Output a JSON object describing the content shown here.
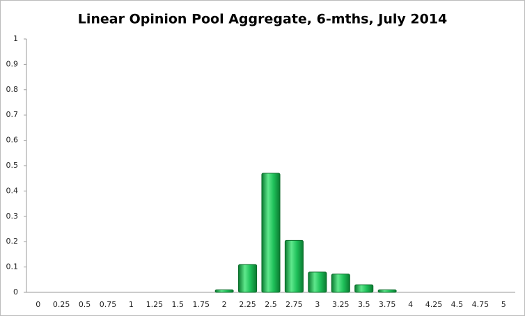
{
  "chart_data": {
    "type": "bar",
    "title": "Linear Opinion Pool Aggregate, 6-mths, July 2014",
    "categories": [
      "0",
      "0.25",
      "0.5",
      "0.75",
      "1",
      "1.25",
      "1.5",
      "1.75",
      "2",
      "2.25",
      "2.5",
      "2.75",
      "3",
      "3.25",
      "3.5",
      "3.75",
      "4",
      "4.25",
      "4.5",
      "4.75",
      "5"
    ],
    "values": [
      0,
      0,
      0,
      0,
      0,
      0,
      0,
      0,
      0.01,
      0.11,
      0.47,
      0.205,
      0.08,
      0.072,
      0.03,
      0.01,
      0,
      0,
      0,
      0,
      0
    ],
    "color": "#1fc05a",
    "ylim": [
      0,
      1
    ],
    "yticks": [
      0,
      0.1,
      0.2,
      0.3,
      0.4,
      0.5,
      0.6,
      0.7,
      0.8,
      0.9,
      1
    ],
    "grid": false
  }
}
